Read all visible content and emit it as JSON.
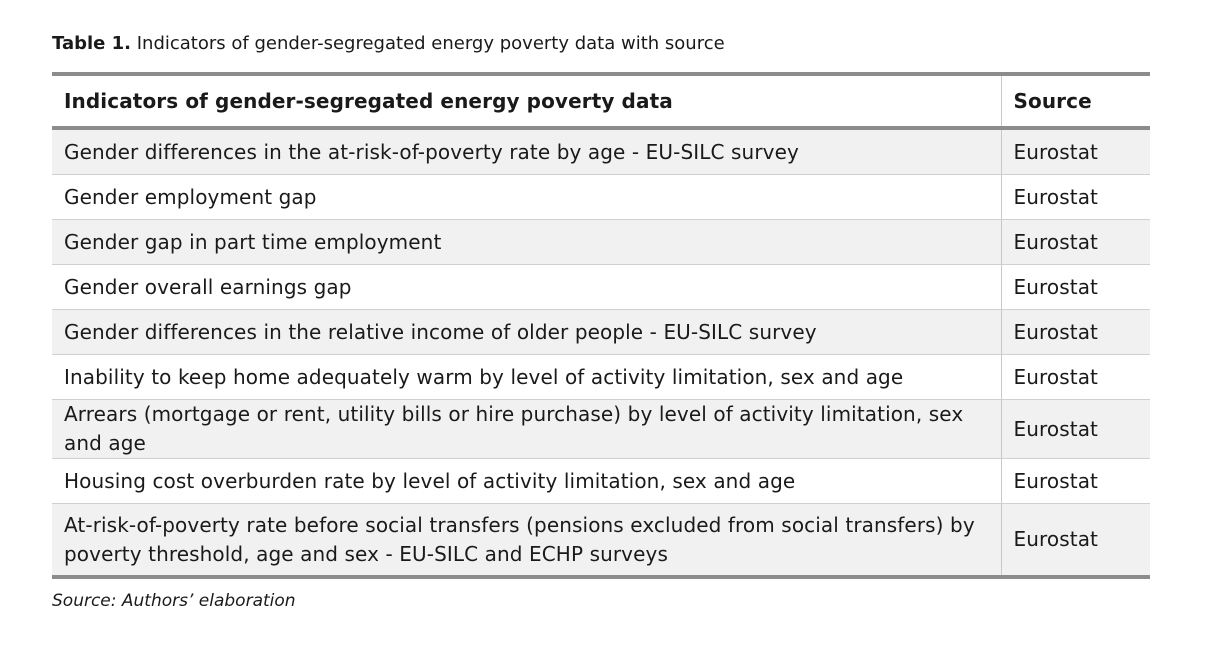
{
  "caption": {
    "label": "Table 1.",
    "text": "Indicators of gender-segregated energy poverty data with source"
  },
  "table": {
    "headers": [
      "Indicators of gender-segregated energy poverty data",
      "Source"
    ],
    "rows": [
      {
        "indicator": "Gender differences in the at-risk-of-poverty rate by age - EU-SILC survey",
        "source": "Eurostat"
      },
      {
        "indicator": "Gender employment gap",
        "source": "Eurostat"
      },
      {
        "indicator": "Gender gap in part time employment",
        "source": "Eurostat"
      },
      {
        "indicator": "Gender overall earnings gap",
        "source": "Eurostat"
      },
      {
        "indicator": "Gender differences in the relative income of older people - EU-SILC survey",
        "source": "Eurostat"
      },
      {
        "indicator": "Inability to keep home adequately warm by level of activity limitation, sex and age",
        "source": "Eurostat"
      },
      {
        "indicator": "Arrears (mortgage or rent, utility bills or hire purchase) by level of activity limitation, sex and age",
        "source": "Eurostat"
      },
      {
        "indicator": "Housing cost overburden rate by level of activity limitation, sex and age",
        "source": "Eurostat"
      },
      {
        "indicator": "At-risk-of-poverty rate before social transfers (pensions excluded from social transfers) by poverty threshold, age and sex - EU-SILC and ECHP surveys",
        "source": "Eurostat"
      }
    ]
  },
  "footnote": "Source: Authors’ elaboration",
  "colors": {
    "rule": "#8c8c8c",
    "row_shade": "#f1f1f1",
    "text": "#1a1a1a"
  }
}
